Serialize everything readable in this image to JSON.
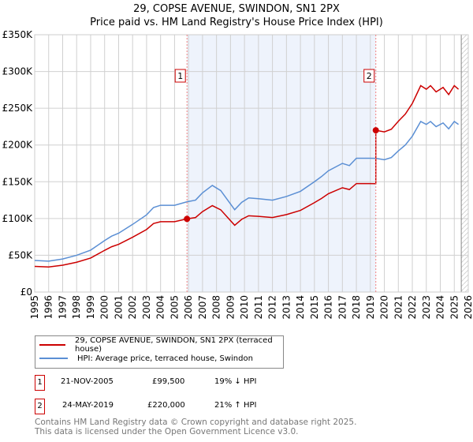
{
  "title": "29, COPSE AVENUE, SWINDON, SN1 2PX",
  "subtitle": "Price paid vs. HM Land Registry's House Price Index (HPI)",
  "chart_data": {
    "type": "line",
    "xlim": [
      1995,
      2026
    ],
    "ylim": [
      0,
      350000
    ],
    "yticks": [
      {
        "v": 0,
        "l": "£0"
      },
      {
        "v": 50000,
        "l": "£50K"
      },
      {
        "v": 100000,
        "l": "£100K"
      },
      {
        "v": 150000,
        "l": "£150K"
      },
      {
        "v": 200000,
        "l": "£200K"
      },
      {
        "v": 250000,
        "l": "£250K"
      },
      {
        "v": 300000,
        "l": "£300K"
      },
      {
        "v": 350000,
        "l": "£350K"
      }
    ],
    "xticks": [
      "1995",
      "1996",
      "1997",
      "1998",
      "1999",
      "2000",
      "2001",
      "2002",
      "2003",
      "2004",
      "2005",
      "2006",
      "2007",
      "2008",
      "2009",
      "2010",
      "2011",
      "2012",
      "2013",
      "2014",
      "2015",
      "2016",
      "2017",
      "2018",
      "2019",
      "2020",
      "2021",
      "2022",
      "2023",
      "2024",
      "2025",
      "2026"
    ],
    "hatch_from": 2025.5,
    "series": [
      {
        "name": "29, COPSE AVENUE, SWINDON, SN1 2PX (terraced house)",
        "color": "#cc0000"
      },
      {
        "name": "HPI: Average price, terraced house, Swindon",
        "color": "#5b8fd4",
        "x": [
          1995,
          1996,
          1997,
          1998,
          1999,
          2000,
          2000.5,
          2001,
          2002,
          2003,
          2003.5,
          2004,
          2005,
          2005.9,
          2006.5,
          2007,
          2007.7,
          2008.3,
          2008.8,
          2009.3,
          2009.8,
          2010.3,
          2011,
          2012,
          2013,
          2014,
          2015,
          2015.5,
          2016,
          2017,
          2017.5,
          2018,
          2019,
          2019.4,
          2020,
          2020.5,
          2021,
          2021.5,
          2022,
          2022.6,
          2023,
          2023.3,
          2023.7,
          2024.2,
          2024.6,
          2025,
          2025.3
        ],
        "y": [
          43000,
          42000,
          45000,
          50000,
          57000,
          70000,
          76000,
          80000,
          92000,
          105000,
          115000,
          118000,
          118000,
          122800,
          125000,
          135000,
          145000,
          138000,
          125000,
          112000,
          122000,
          128000,
          127000,
          125000,
          130000,
          137000,
          150000,
          157000,
          165000,
          175000,
          172000,
          182000,
          182000,
          181800,
          180000,
          183000,
          192000,
          200000,
          212000,
          232000,
          228000,
          232000,
          225000,
          230000,
          222000,
          232000,
          228000
        ]
      }
    ],
    "sales": [
      {
        "n": "1",
        "x": 2005.89,
        "price": 99500
      },
      {
        "n": "2",
        "x": 2019.39,
        "price": 220000
      }
    ]
  },
  "legend": [
    "29, COPSE AVENUE, SWINDON, SN1 2PX (terraced house)",
    "HPI: Average price, terraced house, Swindon"
  ],
  "table": [
    {
      "n": "1",
      "date": "21-NOV-2005",
      "price": "£99,500",
      "hpi": "19% ↓ HPI"
    },
    {
      "n": "2",
      "date": "24-MAY-2019",
      "price": "£220,000",
      "hpi": "21% ↑ HPI"
    }
  ],
  "footer": [
    "Contains HM Land Registry data © Crown copyright and database right 2025.",
    "This data is licensed under the Open Government Licence v3.0."
  ]
}
